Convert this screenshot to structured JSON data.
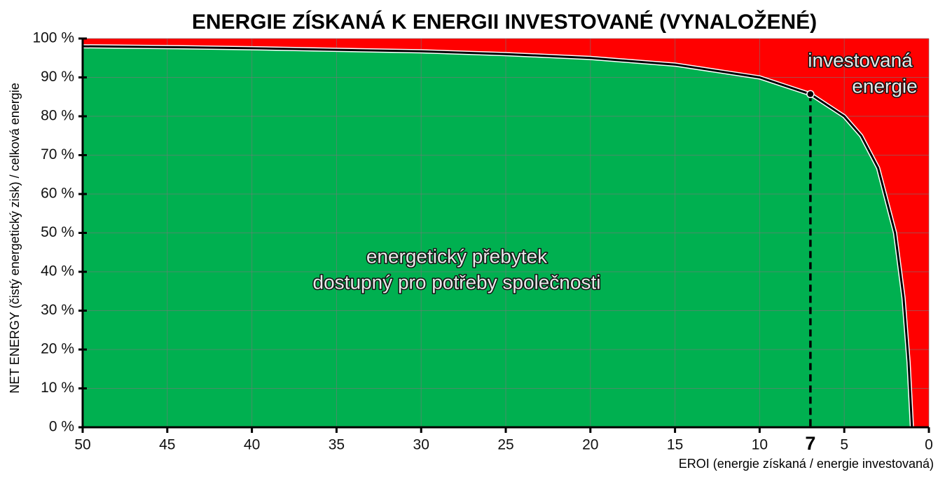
{
  "chart_data": {
    "type": "area",
    "title": "ENERGIE ZÍSKANÁ K ENERGII INVESTOVANÉ (VYNALOŽENÉ)",
    "y_label": "NET ENERGY (čistý energetický zisk) / celková energie",
    "x_label": "EROI (energie získaná / energie investovaná)",
    "x": [
      50,
      45,
      40,
      35,
      30,
      25,
      20,
      15,
      10,
      7,
      5,
      4,
      3,
      2,
      1.5,
      1.2,
      1
    ],
    "values": [
      98,
      97.8,
      97.5,
      97.1,
      96.7,
      96,
      95,
      93.3,
      90,
      85.7,
      80,
      75,
      66.7,
      50,
      33.3,
      16.7,
      0
    ],
    "color": "#00b050",
    "background_color": "#ff0000",
    "highlight_x": 7,
    "xlim": [
      50,
      0
    ],
    "xticks": [
      50,
      45,
      40,
      35,
      30,
      25,
      20,
      15,
      10,
      5,
      0
    ],
    "ylim": [
      0,
      100
    ],
    "yticks": [
      {
        "value": 0,
        "label": "0 %"
      },
      {
        "value": 10,
        "label": "10 %"
      },
      {
        "value": 20,
        "label": "20 %"
      },
      {
        "value": 30,
        "label": "30 %"
      },
      {
        "value": 40,
        "label": "40 %"
      },
      {
        "value": 50,
        "label": "50 %"
      },
      {
        "value": 60,
        "label": "60 %"
      },
      {
        "value": 70,
        "label": "70 %"
      },
      {
        "value": 80,
        "label": "80 %"
      },
      {
        "value": 90,
        "label": "90 %"
      },
      {
        "value": 100,
        "label": "100 %"
      }
    ],
    "grid": true,
    "annotations": [
      {
        "lines": [
          "investovaná",
          "energie"
        ]
      },
      {
        "lines": [
          "energetický přebytek",
          "dostupný pro potřeby společnosti"
        ]
      }
    ]
  }
}
